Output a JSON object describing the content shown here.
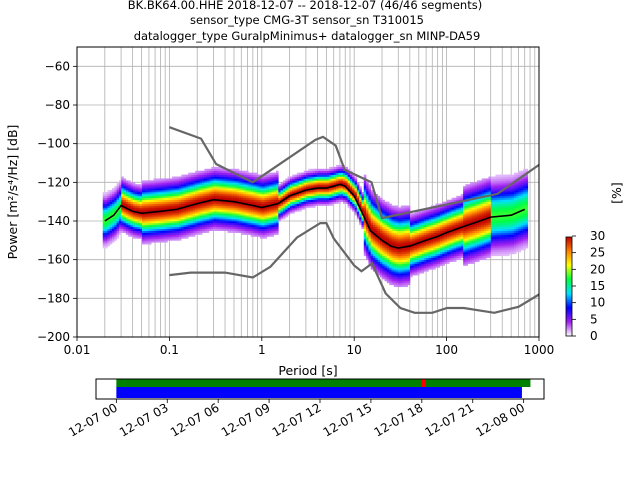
{
  "title_lines": [
    "BK.BK64.00.HHE   2018-12-07 -- 2018-12-07  (46/46 segments)",
    "sensor_type CMG-3T sensor_sn T310015",
    "datalogger_type GuralpMinimus+ datalogger_sn MINP-DA59"
  ],
  "chart_data": [
    {
      "type": "heatmap",
      "xlabel": "Period [s]",
      "ylabel": "Power [m²/s⁴/Hz] [dB]",
      "xscale": "log",
      "xlim": [
        0.01,
        1000
      ],
      "ylim": [
        -200,
        -50
      ],
      "x_ticks": [
        {
          "value": 0.01,
          "label": "0.01"
        },
        {
          "value": 0.1,
          "label": "0.1"
        },
        {
          "value": 1,
          "label": "1"
        },
        {
          "value": 10,
          "label": "10"
        },
        {
          "value": 100,
          "label": "100"
        },
        {
          "value": 1000,
          "label": "1000"
        }
      ],
      "y_ticks": [
        -60,
        -80,
        -100,
        -120,
        -140,
        -160,
        -180,
        -200
      ],
      "grid": true,
      "colorbar": {
        "label": "[%]",
        "ticks": [
          0,
          5,
          10,
          15,
          20,
          25,
          30
        ],
        "range": [
          0,
          30
        ],
        "colors": [
          "#ffffff",
          "#a020f0",
          "#0000ff",
          "#00e0ff",
          "#00ff40",
          "#ffff00",
          "#ff8000",
          "#c00000"
        ]
      },
      "noise_models": {
        "color": "#666666",
        "high": [
          [
            0.1,
            -91.5
          ],
          [
            0.22,
            -97.4
          ],
          [
            0.32,
            -110.5
          ],
          [
            0.8,
            -120
          ],
          [
            3.8,
            -98
          ],
          [
            4.6,
            -96.5
          ],
          [
            6.3,
            -101
          ],
          [
            7.9,
            -113.5
          ],
          [
            15.4,
            -120
          ],
          [
            20,
            -138.5
          ],
          [
            354.8,
            -126
          ],
          [
            1000,
            -111
          ]
        ],
        "low": [
          [
            0.1,
            -168
          ],
          [
            0.17,
            -166.7
          ],
          [
            0.4,
            -166.7
          ],
          [
            0.8,
            -169.2
          ],
          [
            1.24,
            -163.7
          ],
          [
            2.4,
            -148.6
          ],
          [
            4.3,
            -141.1
          ],
          [
            5,
            -141.1
          ],
          [
            6,
            -149
          ],
          [
            10,
            -163
          ],
          [
            12,
            -166
          ],
          [
            15.6,
            -162
          ],
          [
            21.9,
            -177.5
          ],
          [
            31.6,
            -185
          ],
          [
            45,
            -187.5
          ],
          [
            70,
            -187.5
          ],
          [
            101,
            -185
          ],
          [
            154,
            -185
          ],
          [
            328,
            -187.5
          ],
          [
            600,
            -184.4
          ],
          [
            1000,
            -178
          ]
        ]
      },
      "mean_curve": {
        "color": "#000000",
        "points": [
          [
            0.02,
            -140
          ],
          [
            0.025,
            -137
          ],
          [
            0.03,
            -132
          ],
          [
            0.04,
            -135
          ],
          [
            0.05,
            -136
          ],
          [
            0.08,
            -135
          ],
          [
            0.12,
            -134
          ],
          [
            0.2,
            -131
          ],
          [
            0.3,
            -129
          ],
          [
            0.5,
            -130
          ],
          [
            0.8,
            -132
          ],
          [
            1,
            -133
          ],
          [
            1.5,
            -131
          ],
          [
            2,
            -127
          ],
          [
            3,
            -124
          ],
          [
            4,
            -123
          ],
          [
            5,
            -123
          ],
          [
            6,
            -122
          ],
          [
            7,
            -121
          ],
          [
            8,
            -122
          ],
          [
            10,
            -127
          ],
          [
            12,
            -135
          ],
          [
            15,
            -145
          ],
          [
            20,
            -150
          ],
          [
            25,
            -153
          ],
          [
            30,
            -154
          ],
          [
            40,
            -153
          ],
          [
            60,
            -150
          ],
          [
            80,
            -148
          ],
          [
            100,
            -146
          ],
          [
            150,
            -143
          ],
          [
            200,
            -141
          ],
          [
            300,
            -138
          ],
          [
            500,
            -137
          ],
          [
            700,
            -134
          ]
        ]
      }
    },
    {
      "type": "timeline",
      "x_ticks": [
        "12-07 00",
        "12-07 03",
        "12-07 06",
        "12-07 09",
        "12-07 12",
        "12-07 15",
        "12-07 18",
        "12-07 21",
        "12-08 00"
      ],
      "x_range_hours": [
        -1.2,
        25.2
      ],
      "bars": [
        {
          "name": "green",
          "color": "#008000",
          "start_hours": 0,
          "end_hours": 24.4
        },
        {
          "name": "red",
          "color": "#ff0000",
          "start_hours": 17.95,
          "end_hours": 18.2
        },
        {
          "name": "blue",
          "color": "#0000ff",
          "start_hours": 0,
          "end_hours": 23.9
        }
      ]
    }
  ]
}
